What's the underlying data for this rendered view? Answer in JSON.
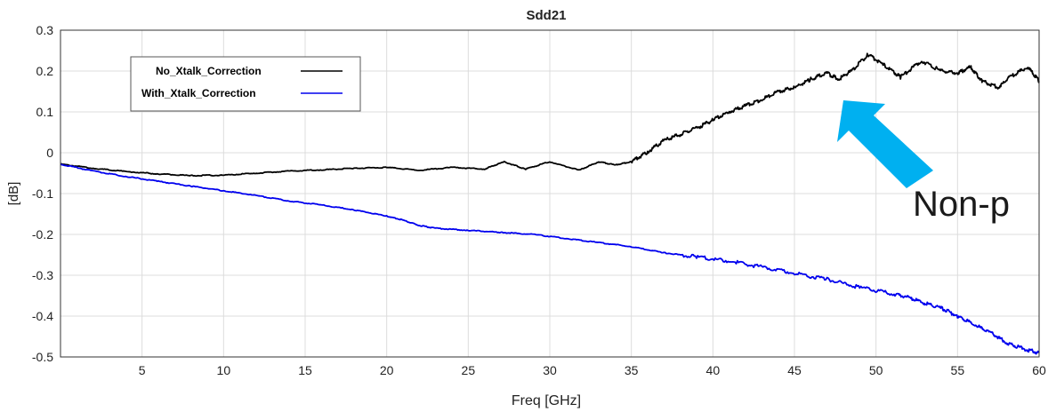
{
  "chart_data": {
    "type": "line",
    "title": "Sdd21",
    "xlabel": "Freq [GHz]",
    "ylabel": "[dB]",
    "xlim": [
      0,
      60
    ],
    "ylim": [
      -0.5,
      0.3
    ],
    "grid": true,
    "legend_position": "top-left",
    "xticks": [
      "5",
      "10",
      "15",
      "20",
      "25",
      "30",
      "35",
      "40",
      "45",
      "50",
      "55",
      "60"
    ],
    "yticks": [
      "0.3",
      "0.2",
      "0.1",
      "0",
      "-0.1",
      "-0.2",
      "-0.3",
      "-0.4",
      "-0.5"
    ],
    "series": [
      {
        "name": "No_Xtalk_Correction",
        "color": "#000000",
        "x": [
          0,
          2,
          4,
          6,
          8,
          10,
          12,
          14,
          16,
          18,
          20,
          22,
          24,
          26,
          27.2,
          28.5,
          30,
          31.8,
          33,
          34,
          35,
          36,
          37,
          38,
          39,
          40,
          41,
          42,
          43,
          44,
          45,
          46,
          47,
          47.7,
          48.5,
          49.5,
          50.5,
          51.5,
          52.8,
          54,
          55,
          55.8,
          56.5,
          57.5,
          58.2,
          59.3,
          60
        ],
        "y": [
          -0.028,
          -0.038,
          -0.046,
          -0.052,
          -0.056,
          -0.055,
          -0.05,
          -0.045,
          -0.042,
          -0.038,
          -0.036,
          -0.043,
          -0.036,
          -0.04,
          -0.022,
          -0.04,
          -0.022,
          -0.043,
          -0.022,
          -0.03,
          -0.022,
          0.002,
          0.03,
          0.045,
          0.06,
          0.08,
          0.1,
          0.115,
          0.13,
          0.15,
          0.16,
          0.18,
          0.195,
          0.18,
          0.2,
          0.24,
          0.215,
          0.185,
          0.225,
          0.2,
          0.195,
          0.21,
          0.175,
          0.16,
          0.185,
          0.21,
          0.175
        ]
      },
      {
        "name": "With_Xtalk_Correction",
        "color": "#0000ee",
        "x": [
          0,
          2,
          4,
          6,
          8,
          10,
          12,
          14,
          16,
          18,
          20,
          21,
          22,
          23,
          25,
          27,
          29,
          31,
          33,
          35,
          37,
          39,
          41,
          43,
          45,
          47,
          49,
          51,
          52,
          53,
          54,
          55,
          56,
          57,
          58,
          59,
          60
        ],
        "y": [
          -0.028,
          -0.045,
          -0.058,
          -0.07,
          -0.082,
          -0.093,
          -0.105,
          -0.118,
          -0.128,
          -0.14,
          -0.155,
          -0.165,
          -0.178,
          -0.185,
          -0.19,
          -0.195,
          -0.2,
          -0.21,
          -0.22,
          -0.23,
          -0.245,
          -0.255,
          -0.265,
          -0.28,
          -0.295,
          -0.31,
          -0.33,
          -0.345,
          -0.355,
          -0.368,
          -0.38,
          -0.4,
          -0.42,
          -0.44,
          -0.465,
          -0.48,
          -0.49
        ]
      }
    ]
  },
  "annotation": {
    "text": "Non-p",
    "arrow_color": "#00b0f0"
  }
}
